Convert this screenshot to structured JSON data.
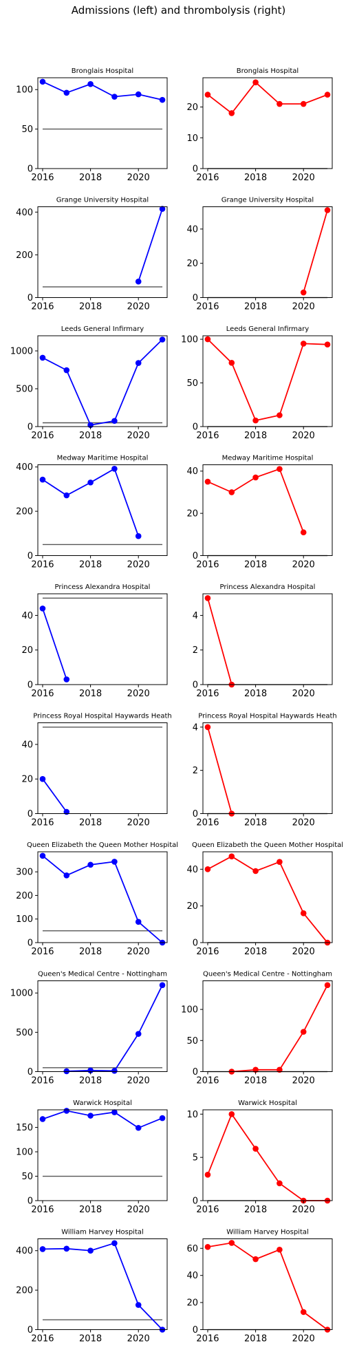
{
  "figure": {
    "title": "Admissions (left) and thrombolysis (right)"
  },
  "chart_data": [
    {
      "type": "line",
      "title": "Bronglais Hospital",
      "color": "#0000ff",
      "x": [
        2016,
        2017,
        2018,
        2019,
        2020,
        2021
      ],
      "series": [
        {
          "values": [
            110,
            96,
            107,
            91,
            94,
            87
          ]
        }
      ],
      "reference_line": 50,
      "xlim": [
        2015.8,
        2021.2
      ],
      "ylim": [
        0,
        115
      ],
      "xticks": [
        "2016",
        "2018",
        "2020"
      ],
      "yticks": [
        "0",
        "50",
        "100"
      ]
    },
    {
      "type": "line",
      "title": "Bronglais Hospital",
      "color": "#ff0000",
      "x": [
        2016,
        2017,
        2018,
        2019,
        2020,
        2021
      ],
      "series": [
        {
          "values": [
            24,
            18,
            28,
            21,
            21,
            24
          ]
        }
      ],
      "reference_line": 0,
      "xlim": [
        2015.8,
        2021.2
      ],
      "ylim": [
        0,
        29.5
      ],
      "xticks": [
        "2016",
        "2018",
        "2020"
      ],
      "yticks": [
        "0",
        "10",
        "20"
      ]
    },
    {
      "type": "line",
      "title": "Grange University Hospital",
      "color": "#0000ff",
      "x": [
        2020,
        2021
      ],
      "series": [
        {
          "values": [
            75,
            415
          ]
        }
      ],
      "reference_line": 50,
      "xlim": [
        2015.8,
        2021.2
      ],
      "ylim": [
        0,
        425
      ],
      "xticks": [
        "2016",
        "2018",
        "2020"
      ],
      "yticks": [
        "0",
        "200",
        "400"
      ]
    },
    {
      "type": "line",
      "title": "Grange University Hospital",
      "color": "#ff0000",
      "x": [
        2020,
        2021
      ],
      "series": [
        {
          "values": [
            3,
            51
          ]
        }
      ],
      "reference_line": 0,
      "xlim": [
        2015.8,
        2021.2
      ],
      "ylim": [
        0,
        53
      ],
      "xticks": [
        "2016",
        "2018",
        "2020"
      ],
      "yticks": [
        "0",
        "20",
        "40"
      ]
    },
    {
      "type": "line",
      "title": "Leeds General Infirmary",
      "color": "#0000ff",
      "x": [
        2016,
        2017,
        2018,
        2019,
        2020,
        2021
      ],
      "series": [
        {
          "values": [
            910,
            745,
            20,
            75,
            840,
            1150
          ]
        }
      ],
      "reference_line": 50,
      "xlim": [
        2015.8,
        2021.2
      ],
      "ylim": [
        0,
        1200
      ],
      "xticks": [
        "2016",
        "2018",
        "2020"
      ],
      "yticks": [
        "0",
        "500",
        "1000"
      ]
    },
    {
      "type": "line",
      "title": "Leeds General Infirmary",
      "color": "#ff0000",
      "x": [
        2016,
        2017,
        2018,
        2019,
        2020,
        2021
      ],
      "series": [
        {
          "values": [
            100,
            73,
            7,
            13,
            95,
            94
          ]
        }
      ],
      "reference_line": 0,
      "xlim": [
        2015.8,
        2021.2
      ],
      "ylim": [
        0,
        104
      ],
      "xticks": [
        "2016",
        "2018",
        "2020"
      ],
      "yticks": [
        "0",
        "50",
        "100"
      ]
    },
    {
      "type": "line",
      "title": "Medway Maritime Hospital",
      "color": "#0000ff",
      "x": [
        2016,
        2017,
        2018,
        2019,
        2020
      ],
      "series": [
        {
          "values": [
            343,
            272,
            330,
            392,
            88
          ]
        }
      ],
      "reference_line": 50,
      "xlim": [
        2015.8,
        2021.2
      ],
      "ylim": [
        0,
        410
      ],
      "xticks": [
        "2016",
        "2018",
        "2020"
      ],
      "yticks": [
        "0",
        "200",
        "400"
      ]
    },
    {
      "type": "line",
      "title": "Medway Maritime Hospital",
      "color": "#ff0000",
      "x": [
        2016,
        2017,
        2018,
        2019,
        2020
      ],
      "series": [
        {
          "values": [
            35,
            30,
            37,
            41,
            11
          ]
        }
      ],
      "reference_line": 0,
      "xlim": [
        2015.8,
        2021.2
      ],
      "ylim": [
        0,
        43
      ],
      "xticks": [
        "2016",
        "2018",
        "2020"
      ],
      "yticks": [
        "0",
        "20",
        "40"
      ]
    },
    {
      "type": "line",
      "title": "Princess Alexandra Hospital",
      "color": "#0000ff",
      "x": [
        2016,
        2017
      ],
      "series": [
        {
          "values": [
            44,
            3
          ]
        }
      ],
      "reference_line": 50,
      "xlim": [
        2015.8,
        2021.2
      ],
      "ylim": [
        0,
        52.5
      ],
      "xticks": [
        "2016",
        "2018",
        "2020"
      ],
      "yticks": [
        "0",
        "20",
        "40"
      ]
    },
    {
      "type": "line",
      "title": "Princess Alexandra Hospital",
      "color": "#ff0000",
      "x": [
        2016,
        2017
      ],
      "series": [
        {
          "values": [
            5,
            0
          ]
        }
      ],
      "reference_line": 0,
      "xlim": [
        2015.8,
        2021.2
      ],
      "ylim": [
        0,
        5.25
      ],
      "xticks": [
        "2016",
        "2018",
        "2020"
      ],
      "yticks": [
        "0",
        "2",
        "4"
      ]
    },
    {
      "type": "line",
      "title": "Princess Royal Hospital Haywards Heath",
      "color": "#0000ff",
      "x": [
        2016,
        2017
      ],
      "series": [
        {
          "values": [
            20,
            1
          ]
        }
      ],
      "reference_line": 50,
      "xlim": [
        2015.8,
        2021.2
      ],
      "ylim": [
        0,
        52.5
      ],
      "xticks": [
        "2016",
        "2018",
        "2020"
      ],
      "yticks": [
        "0",
        "20",
        "40"
      ]
    },
    {
      "type": "line",
      "title": "Princess Royal Hospital Haywards Heath",
      "color": "#ff0000",
      "x": [
        2016,
        2017
      ],
      "series": [
        {
          "values": [
            4,
            0
          ]
        }
      ],
      "reference_line": 0,
      "xlim": [
        2015.8,
        2021.2
      ],
      "ylim": [
        0,
        4.2
      ],
      "xticks": [
        "2016",
        "2018",
        "2020"
      ],
      "yticks": [
        "0",
        "2",
        "4"
      ]
    },
    {
      "type": "line",
      "title": "Queen Elizabeth the Queen Mother Hospital",
      "color": "#0000ff",
      "x": [
        2016,
        2017,
        2018,
        2019,
        2020,
        2021
      ],
      "series": [
        {
          "values": [
            368,
            285,
            330,
            343,
            88,
            0
          ]
        }
      ],
      "reference_line": 50,
      "xlim": [
        2015.8,
        2021.2
      ],
      "ylim": [
        0,
        385
      ],
      "xticks": [
        "2016",
        "2018",
        "2020"
      ],
      "yticks": [
        "0",
        "100",
        "200",
        "300"
      ]
    },
    {
      "type": "line",
      "title": "Queen Elizabeth the Queen Mother Hospital",
      "color": "#ff0000",
      "x": [
        2016,
        2017,
        2018,
        2019,
        2020,
        2021
      ],
      "series": [
        {
          "values": [
            40,
            47,
            39,
            44,
            16,
            0
          ]
        }
      ],
      "reference_line": 0,
      "xlim": [
        2015.8,
        2021.2
      ],
      "ylim": [
        0,
        49.5
      ],
      "xticks": [
        "2016",
        "2018",
        "2020"
      ],
      "yticks": [
        "0",
        "20",
        "40"
      ]
    },
    {
      "type": "line",
      "title": "Queen's Medical Centre - Nottingham",
      "color": "#0000ff",
      "x": [
        2017,
        2018,
        2019,
        2020,
        2021
      ],
      "series": [
        {
          "values": [
            5,
            15,
            10,
            480,
            1100
          ]
        }
      ],
      "reference_line": 50,
      "xlim": [
        2015.8,
        2021.2
      ],
      "ylim": [
        0,
        1155
      ],
      "xticks": [
        "2016",
        "2018",
        "2020"
      ],
      "yticks": [
        "0",
        "500",
        "1000"
      ]
    },
    {
      "type": "line",
      "title": "Queen's Medical Centre - Nottingham",
      "color": "#ff0000",
      "x": [
        2017,
        2018,
        2019,
        2020,
        2021
      ],
      "series": [
        {
          "values": [
            0,
            3,
            3,
            64,
            139
          ]
        }
      ],
      "reference_line": 0,
      "xlim": [
        2015.8,
        2021.2
      ],
      "ylim": [
        0,
        146
      ],
      "xticks": [
        "2016",
        "2018",
        "2020"
      ],
      "yticks": [
        "0",
        "50",
        "100"
      ]
    },
    {
      "type": "line",
      "title": "Warwick Hospital",
      "color": "#0000ff",
      "x": [
        2016,
        2017,
        2018,
        2019,
        2020,
        2021
      ],
      "series": [
        {
          "values": [
            167,
            184,
            174,
            181,
            149,
            169
          ]
        }
      ],
      "reference_line": 50,
      "xlim": [
        2015.8,
        2021.2
      ],
      "ylim": [
        0,
        186
      ],
      "xticks": [
        "2016",
        "2018",
        "2020"
      ],
      "yticks": [
        "0",
        "50",
        "100",
        "150"
      ]
    },
    {
      "type": "line",
      "title": "Warwick Hospital",
      "color": "#ff0000",
      "x": [
        2016,
        2017,
        2018,
        2019,
        2020,
        2021
      ],
      "series": [
        {
          "values": [
            3,
            10,
            6,
            2,
            0,
            0
          ]
        }
      ],
      "reference_line": 0,
      "xlim": [
        2015.8,
        2021.2
      ],
      "ylim": [
        0,
        10.5
      ],
      "xticks": [
        "2016",
        "2018",
        "2020"
      ],
      "yticks": [
        "0",
        "5",
        "10"
      ]
    },
    {
      "type": "line",
      "title": "William Harvey Hospital",
      "color": "#0000ff",
      "x": [
        2016,
        2017,
        2018,
        2019,
        2020,
        2021
      ],
      "series": [
        {
          "values": [
            408,
            410,
            400,
            438,
            125,
            0
          ]
        }
      ],
      "reference_line": 50,
      "xlim": [
        2015.8,
        2021.2
      ],
      "ylim": [
        0,
        460
      ],
      "xticks": [
        "2016",
        "2018",
        "2020"
      ],
      "yticks": [
        "0",
        "200",
        "400"
      ]
    },
    {
      "type": "line",
      "title": "William Harvey Hospital",
      "color": "#ff0000",
      "x": [
        2016,
        2017,
        2018,
        2019,
        2020,
        2021
      ],
      "series": [
        {
          "values": [
            61,
            64,
            52,
            59,
            13,
            0
          ]
        }
      ],
      "reference_line": 0,
      "xlim": [
        2015.8,
        2021.2
      ],
      "ylim": [
        0,
        67
      ],
      "xticks": [
        "2016",
        "2018",
        "2020"
      ],
      "yticks": [
        "0",
        "20",
        "40",
        "60"
      ]
    }
  ]
}
